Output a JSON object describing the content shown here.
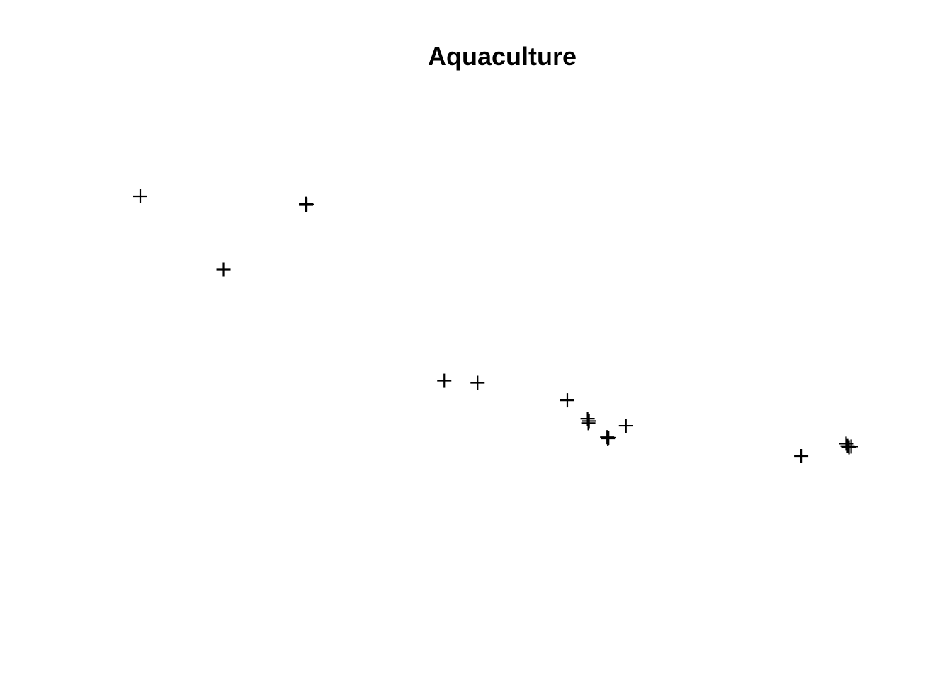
{
  "chart_data": {
    "type": "scatter",
    "title": "Aquaculture",
    "xlabel": "",
    "ylabel": "",
    "axes_visible": false,
    "grid": false,
    "marker": "plus",
    "marker_color": "#000000",
    "xlim": [
      0,
      1
    ],
    "ylim": [
      0,
      1
    ],
    "series": [
      {
        "name": "points",
        "points": [
          {
            "x": 0.0,
            "y": 1.0
          },
          {
            "x": 0.115,
            "y": 0.718
          },
          {
            "x": 0.229,
            "y": 0.971
          },
          {
            "x": 0.229,
            "y": 0.966
          },
          {
            "x": 0.23,
            "y": 0.968
          },
          {
            "x": 0.42,
            "y": 0.29
          },
          {
            "x": 0.466,
            "y": 0.282
          },
          {
            "x": 0.59,
            "y": 0.215
          },
          {
            "x": 0.618,
            "y": 0.144
          },
          {
            "x": 0.619,
            "y": 0.127
          },
          {
            "x": 0.62,
            "y": 0.135
          },
          {
            "x": 0.645,
            "y": 0.073
          },
          {
            "x": 0.646,
            "y": 0.068
          },
          {
            "x": 0.647,
            "y": 0.071
          },
          {
            "x": 0.671,
            "y": 0.117
          },
          {
            "x": 0.913,
            "y": 0.0
          },
          {
            "x": 0.975,
            "y": 0.048
          },
          {
            "x": 0.977,
            "y": 0.039
          },
          {
            "x": 0.979,
            "y": 0.034
          },
          {
            "x": 0.982,
            "y": 0.037
          }
        ]
      }
    ]
  }
}
